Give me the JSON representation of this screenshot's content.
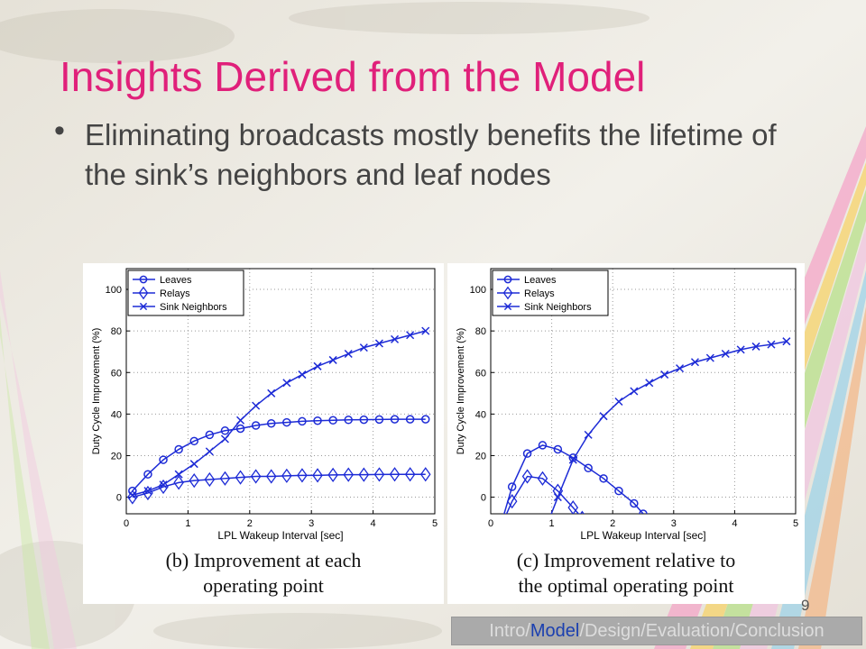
{
  "slide": {
    "title": "Insights Derived from the Model",
    "bullet": "Eliminating broadcasts mostly benefits the lifetime of the sink’s neighbors and leaf nodes",
    "page_number": "9",
    "accent_color": "#e0207a"
  },
  "footer": {
    "items": [
      {
        "label": "Intro",
        "active": false
      },
      {
        "label": "Model",
        "active": true
      },
      {
        "label": "Design",
        "active": false
      },
      {
        "label": "Evaluation",
        "active": false
      },
      {
        "label": "Conclusion",
        "active": false
      }
    ],
    "separator": "/"
  },
  "chart_data": [
    {
      "type": "line",
      "caption_lines": [
        "(b) Improvement at each",
        "operating point"
      ],
      "xlabel": "LPL Wakeup Interval [sec]",
      "ylabel": "Duty Cycle Improvement (%)",
      "xlim": [
        0,
        5
      ],
      "ylim": [
        -8,
        110
      ],
      "xticks": [
        0,
        1,
        2,
        3,
        4,
        5
      ],
      "yticks": [
        0,
        20,
        40,
        60,
        80,
        100
      ],
      "grid": true,
      "legend_position": "top-left",
      "line_color": "#1d2bd6",
      "series": [
        {
          "name": "Leaves",
          "marker": "circle",
          "x": [
            0.1,
            0.35,
            0.6,
            0.85,
            1.1,
            1.35,
            1.6,
            1.85,
            2.1,
            2.35,
            2.6,
            2.85,
            3.1,
            3.35,
            3.6,
            3.85,
            4.1,
            4.35,
            4.6,
            4.85
          ],
          "y": [
            3,
            11,
            18,
            23,
            27,
            30,
            32,
            33,
            34.5,
            35.5,
            36,
            36.5,
            36.8,
            37,
            37.2,
            37.3,
            37.4,
            37.5,
            37.5,
            37.5
          ]
        },
        {
          "name": "Relays",
          "marker": "diamond",
          "x": [
            0.1,
            0.35,
            0.6,
            0.85,
            1.1,
            1.35,
            1.6,
            1.85,
            2.1,
            2.35,
            2.6,
            2.85,
            3.1,
            3.35,
            3.6,
            3.85,
            4.1,
            4.35,
            4.6,
            4.85
          ],
          "y": [
            0,
            2,
            5,
            7,
            8,
            8.5,
            9,
            9.5,
            10,
            10,
            10.3,
            10.5,
            10.5,
            10.7,
            10.8,
            10.8,
            10.9,
            11,
            11,
            11
          ]
        },
        {
          "name": "Sink Neighbors",
          "marker": "x",
          "x": [
            0.1,
            0.35,
            0.6,
            0.85,
            1.1,
            1.35,
            1.6,
            1.85,
            2.1,
            2.35,
            2.6,
            2.85,
            3.1,
            3.35,
            3.6,
            3.85,
            4.1,
            4.35,
            4.6,
            4.85
          ],
          "y": [
            1,
            3,
            6,
            11,
            16,
            22,
            28,
            37,
            44,
            50,
            55,
            59,
            63,
            66,
            69,
            72,
            74,
            76,
            78,
            80
          ]
        }
      ]
    },
    {
      "type": "line",
      "caption_lines": [
        "(c) Improvement relative to",
        "the optimal operating point"
      ],
      "xlabel": "LPL Wakeup Interval [sec]",
      "ylabel": "Duty Cycle Improvement (%)",
      "xlim": [
        0,
        5
      ],
      "ylim": [
        -8,
        110
      ],
      "xticks": [
        0,
        1,
        2,
        3,
        4,
        5
      ],
      "yticks": [
        0,
        20,
        40,
        60,
        80,
        100
      ],
      "grid": true,
      "legend_position": "top-left",
      "line_color": "#1d2bd6",
      "series": [
        {
          "name": "Leaves",
          "marker": "circle",
          "x": [
            0.15,
            0.35,
            0.6,
            0.85,
            1.1,
            1.35,
            1.6,
            1.85,
            2.1,
            2.35,
            2.5
          ],
          "y": [
            -15,
            5,
            21,
            25,
            23,
            19,
            14,
            9,
            3,
            -3,
            -8
          ]
        },
        {
          "name": "Relays",
          "marker": "diamond",
          "x": [
            0.2,
            0.35,
            0.6,
            0.85,
            1.1,
            1.35,
            1.5
          ],
          "y": [
            -12,
            -2,
            10,
            9,
            3,
            -5,
            -10
          ]
        },
        {
          "name": "Sink Neighbors",
          "marker": "x",
          "x": [
            0.9,
            1.1,
            1.35,
            1.6,
            1.85,
            2.1,
            2.35,
            2.6,
            2.85,
            3.1,
            3.35,
            3.6,
            3.85,
            4.1,
            4.35,
            4.6,
            4.85
          ],
          "y": [
            -15,
            0,
            18,
            30,
            39,
            46,
            51,
            55,
            59,
            62,
            65,
            67,
            69,
            71,
            72.5,
            73.5,
            75
          ]
        }
      ]
    }
  ]
}
